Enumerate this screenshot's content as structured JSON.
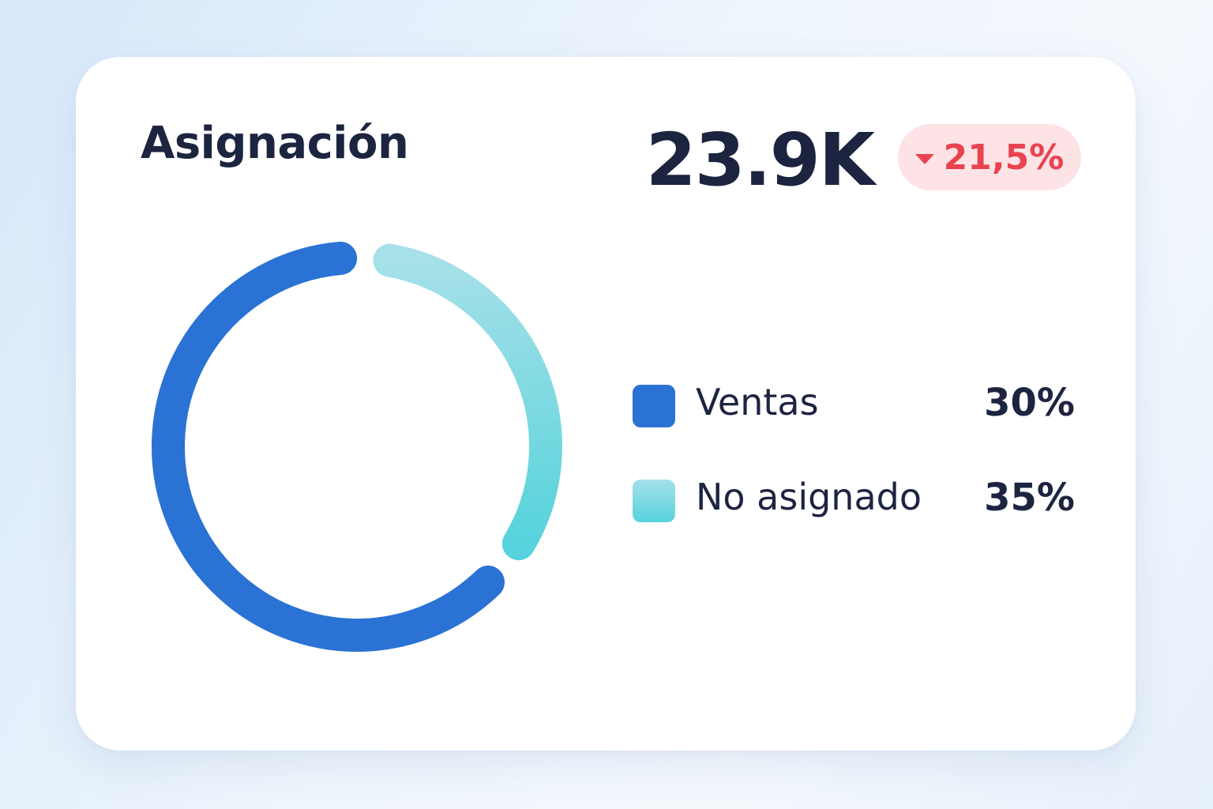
{
  "card": {
    "title": "Asignación",
    "total": "23.9K",
    "change": "21,5%",
    "change_direction": "down"
  },
  "colors": {
    "ventas": "#2a72d4",
    "no_asignado_start": "#a6e0e8",
    "no_asignado_end": "#56d3dc",
    "negative": "#e8434f",
    "negative_bg": "#fde3e5",
    "text": "#1c2440"
  },
  "chart_data": {
    "type": "pie",
    "style": "donut",
    "title": "Asignación",
    "legend_position": "right",
    "slices": [
      {
        "label": "Ventas",
        "value": 30,
        "display": "30%"
      },
      {
        "label": "No asignado",
        "value": 35,
        "display": "35%"
      }
    ]
  }
}
